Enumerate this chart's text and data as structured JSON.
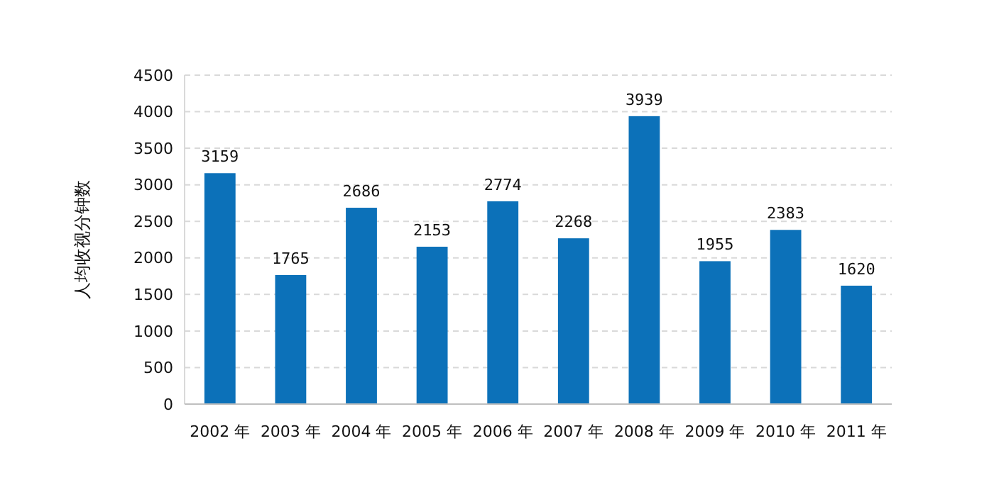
{
  "chart_data": {
    "type": "bar",
    "ylabel": "人均收视分钟数",
    "categories": [
      "2002 年",
      "2003 年",
      "2004 年",
      "2005 年",
      "2006 年",
      "2007 年",
      "2008 年",
      "2009 年",
      "2010 年",
      "2011 年"
    ],
    "values": [
      3159,
      1765,
      2686,
      2153,
      2774,
      2268,
      3939,
      1955,
      2383,
      1620
    ],
    "color": "#0c71b9",
    "ylim": [
      0,
      4500
    ],
    "yticks": [
      0,
      500,
      1000,
      1500,
      2000,
      2500,
      3000,
      3500,
      4000,
      4500
    ],
    "grid": "y",
    "data_labels": true
  }
}
